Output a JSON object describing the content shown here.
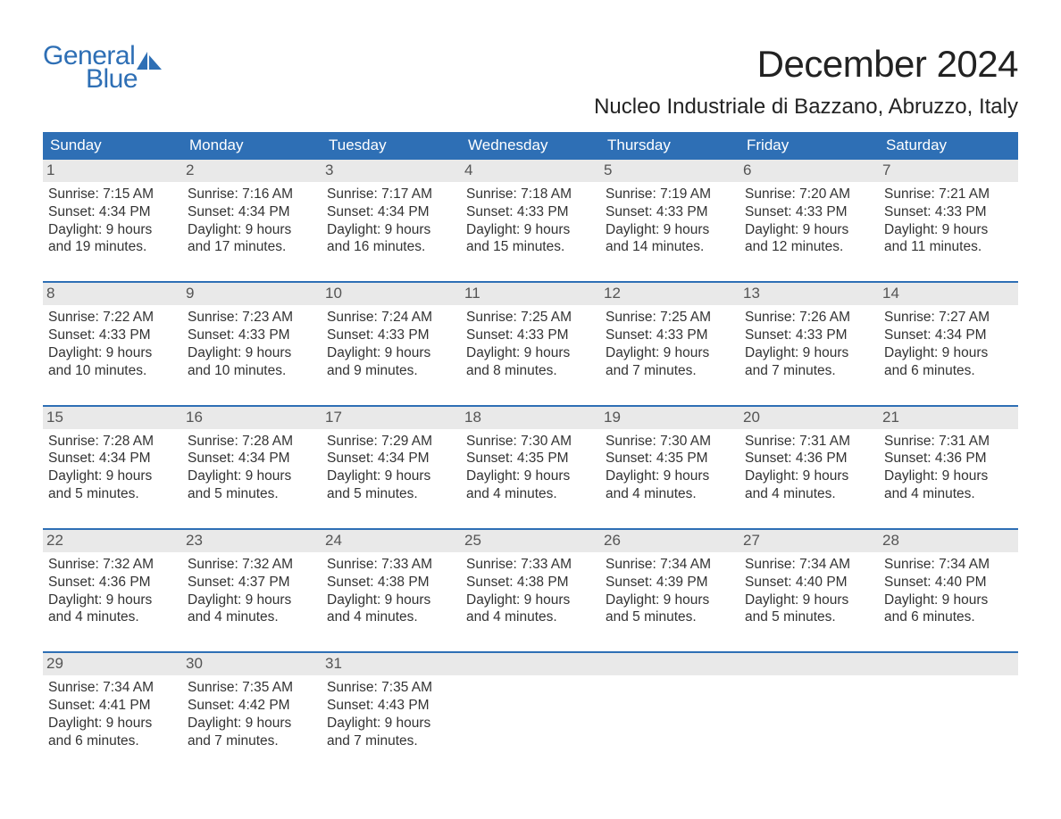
{
  "logo": {
    "text1": "General",
    "text2": "Blue",
    "color": "#2e6fb5"
  },
  "title": "December 2024",
  "location": "Nucleo Industriale di Bazzano, Abruzzo, Italy",
  "colors": {
    "header_bg": "#2e6fb5",
    "header_text": "#ffffff",
    "daynum_bg": "#e9e9e9",
    "daynum_text": "#555555",
    "body_text": "#333333",
    "rule": "#2e6fb5",
    "page_bg": "#ffffff"
  },
  "fonts": {
    "title_pt": 42,
    "location_pt": 24,
    "weekday_pt": 17,
    "daynum_pt": 17,
    "body_pt": 15.5
  },
  "weekdays": [
    "Sunday",
    "Monday",
    "Tuesday",
    "Wednesday",
    "Thursday",
    "Friday",
    "Saturday"
  ],
  "weeks": [
    [
      {
        "n": "1",
        "sunrise": "Sunrise: 7:15 AM",
        "sunset": "Sunset: 4:34 PM",
        "d1": "Daylight: 9 hours",
        "d2": "and 19 minutes."
      },
      {
        "n": "2",
        "sunrise": "Sunrise: 7:16 AM",
        "sunset": "Sunset: 4:34 PM",
        "d1": "Daylight: 9 hours",
        "d2": "and 17 minutes."
      },
      {
        "n": "3",
        "sunrise": "Sunrise: 7:17 AM",
        "sunset": "Sunset: 4:34 PM",
        "d1": "Daylight: 9 hours",
        "d2": "and 16 minutes."
      },
      {
        "n": "4",
        "sunrise": "Sunrise: 7:18 AM",
        "sunset": "Sunset: 4:33 PM",
        "d1": "Daylight: 9 hours",
        "d2": "and 15 minutes."
      },
      {
        "n": "5",
        "sunrise": "Sunrise: 7:19 AM",
        "sunset": "Sunset: 4:33 PM",
        "d1": "Daylight: 9 hours",
        "d2": "and 14 minutes."
      },
      {
        "n": "6",
        "sunrise": "Sunrise: 7:20 AM",
        "sunset": "Sunset: 4:33 PM",
        "d1": "Daylight: 9 hours",
        "d2": "and 12 minutes."
      },
      {
        "n": "7",
        "sunrise": "Sunrise: 7:21 AM",
        "sunset": "Sunset: 4:33 PM",
        "d1": "Daylight: 9 hours",
        "d2": "and 11 minutes."
      }
    ],
    [
      {
        "n": "8",
        "sunrise": "Sunrise: 7:22 AM",
        "sunset": "Sunset: 4:33 PM",
        "d1": "Daylight: 9 hours",
        "d2": "and 10 minutes."
      },
      {
        "n": "9",
        "sunrise": "Sunrise: 7:23 AM",
        "sunset": "Sunset: 4:33 PM",
        "d1": "Daylight: 9 hours",
        "d2": "and 10 minutes."
      },
      {
        "n": "10",
        "sunrise": "Sunrise: 7:24 AM",
        "sunset": "Sunset: 4:33 PM",
        "d1": "Daylight: 9 hours",
        "d2": "and 9 minutes."
      },
      {
        "n": "11",
        "sunrise": "Sunrise: 7:25 AM",
        "sunset": "Sunset: 4:33 PM",
        "d1": "Daylight: 9 hours",
        "d2": "and 8 minutes."
      },
      {
        "n": "12",
        "sunrise": "Sunrise: 7:25 AM",
        "sunset": "Sunset: 4:33 PM",
        "d1": "Daylight: 9 hours",
        "d2": "and 7 minutes."
      },
      {
        "n": "13",
        "sunrise": "Sunrise: 7:26 AM",
        "sunset": "Sunset: 4:33 PM",
        "d1": "Daylight: 9 hours",
        "d2": "and 7 minutes."
      },
      {
        "n": "14",
        "sunrise": "Sunrise: 7:27 AM",
        "sunset": "Sunset: 4:34 PM",
        "d1": "Daylight: 9 hours",
        "d2": "and 6 minutes."
      }
    ],
    [
      {
        "n": "15",
        "sunrise": "Sunrise: 7:28 AM",
        "sunset": "Sunset: 4:34 PM",
        "d1": "Daylight: 9 hours",
        "d2": "and 5 minutes."
      },
      {
        "n": "16",
        "sunrise": "Sunrise: 7:28 AM",
        "sunset": "Sunset: 4:34 PM",
        "d1": "Daylight: 9 hours",
        "d2": "and 5 minutes."
      },
      {
        "n": "17",
        "sunrise": "Sunrise: 7:29 AM",
        "sunset": "Sunset: 4:34 PM",
        "d1": "Daylight: 9 hours",
        "d2": "and 5 minutes."
      },
      {
        "n": "18",
        "sunrise": "Sunrise: 7:30 AM",
        "sunset": "Sunset: 4:35 PM",
        "d1": "Daylight: 9 hours",
        "d2": "and 4 minutes."
      },
      {
        "n": "19",
        "sunrise": "Sunrise: 7:30 AM",
        "sunset": "Sunset: 4:35 PM",
        "d1": "Daylight: 9 hours",
        "d2": "and 4 minutes."
      },
      {
        "n": "20",
        "sunrise": "Sunrise: 7:31 AM",
        "sunset": "Sunset: 4:36 PM",
        "d1": "Daylight: 9 hours",
        "d2": "and 4 minutes."
      },
      {
        "n": "21",
        "sunrise": "Sunrise: 7:31 AM",
        "sunset": "Sunset: 4:36 PM",
        "d1": "Daylight: 9 hours",
        "d2": "and 4 minutes."
      }
    ],
    [
      {
        "n": "22",
        "sunrise": "Sunrise: 7:32 AM",
        "sunset": "Sunset: 4:36 PM",
        "d1": "Daylight: 9 hours",
        "d2": "and 4 minutes."
      },
      {
        "n": "23",
        "sunrise": "Sunrise: 7:32 AM",
        "sunset": "Sunset: 4:37 PM",
        "d1": "Daylight: 9 hours",
        "d2": "and 4 minutes."
      },
      {
        "n": "24",
        "sunrise": "Sunrise: 7:33 AM",
        "sunset": "Sunset: 4:38 PM",
        "d1": "Daylight: 9 hours",
        "d2": "and 4 minutes."
      },
      {
        "n": "25",
        "sunrise": "Sunrise: 7:33 AM",
        "sunset": "Sunset: 4:38 PM",
        "d1": "Daylight: 9 hours",
        "d2": "and 4 minutes."
      },
      {
        "n": "26",
        "sunrise": "Sunrise: 7:34 AM",
        "sunset": "Sunset: 4:39 PM",
        "d1": "Daylight: 9 hours",
        "d2": "and 5 minutes."
      },
      {
        "n": "27",
        "sunrise": "Sunrise: 7:34 AM",
        "sunset": "Sunset: 4:40 PM",
        "d1": "Daylight: 9 hours",
        "d2": "and 5 minutes."
      },
      {
        "n": "28",
        "sunrise": "Sunrise: 7:34 AM",
        "sunset": "Sunset: 4:40 PM",
        "d1": "Daylight: 9 hours",
        "d2": "and 6 minutes."
      }
    ],
    [
      {
        "n": "29",
        "sunrise": "Sunrise: 7:34 AM",
        "sunset": "Sunset: 4:41 PM",
        "d1": "Daylight: 9 hours",
        "d2": "and 6 minutes."
      },
      {
        "n": "30",
        "sunrise": "Sunrise: 7:35 AM",
        "sunset": "Sunset: 4:42 PM",
        "d1": "Daylight: 9 hours",
        "d2": "and 7 minutes."
      },
      {
        "n": "31",
        "sunrise": "Sunrise: 7:35 AM",
        "sunset": "Sunset: 4:43 PM",
        "d1": "Daylight: 9 hours",
        "d2": "and 7 minutes."
      },
      {
        "empty": true
      },
      {
        "empty": true
      },
      {
        "empty": true
      },
      {
        "empty": true
      }
    ]
  ]
}
